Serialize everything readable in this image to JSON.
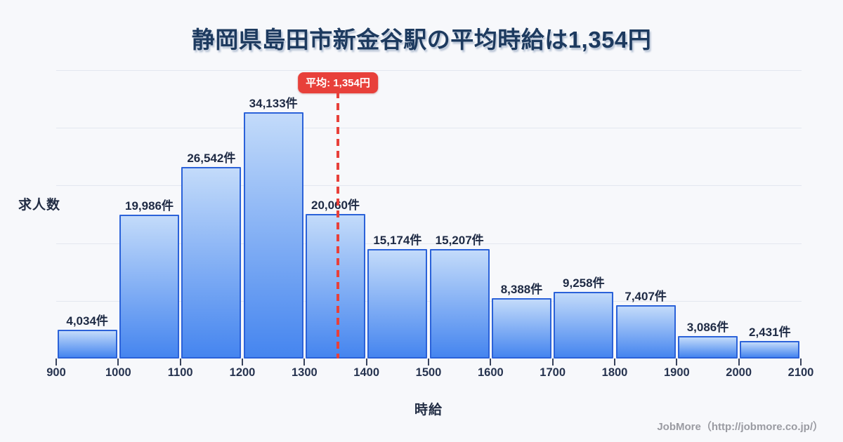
{
  "title": "静岡県島田市新金谷駅の平均時給は1,354円",
  "chart_data": {
    "type": "bar",
    "title": "静岡県島田市新金谷駅の平均時給は1,354円",
    "xlabel": "時給",
    "ylabel": "求人数",
    "x_start": 900,
    "bin_width": 100,
    "x_ticks": [
      900,
      1000,
      1100,
      1200,
      1300,
      1400,
      1500,
      1600,
      1700,
      1800,
      1900,
      2000,
      2100
    ],
    "values": [
      4034,
      19986,
      26542,
      34133,
      20060,
      15174,
      15207,
      8388,
      9258,
      7407,
      3086,
      2431
    ],
    "value_labels": [
      "4,034件",
      "19,986件",
      "26,542件",
      "34,133件",
      "20,060件",
      "15,174件",
      "15,207件",
      "8,388件",
      "9,258件",
      "7,407件",
      "3,086件",
      "2,431件"
    ],
    "average": 1354,
    "average_label": "平均: 1,354円",
    "ylim": [
      0,
      40000
    ],
    "gridline_step": 8000,
    "grid": "horizontal",
    "legend": "none"
  },
  "footer": {
    "credit": "JobMore（http://jobmore.co.jp/）"
  },
  "colors": {
    "background": "#f7f8fb",
    "bar_border": "#2b62d9",
    "bar_fill_top": "#c3dbfa",
    "bar_fill_bottom": "#4585ef",
    "average_red": "#e8403a",
    "title_text": "#1d3a5f",
    "gridline": "#e3e7ef",
    "footer_text": "#9a9ba2"
  }
}
